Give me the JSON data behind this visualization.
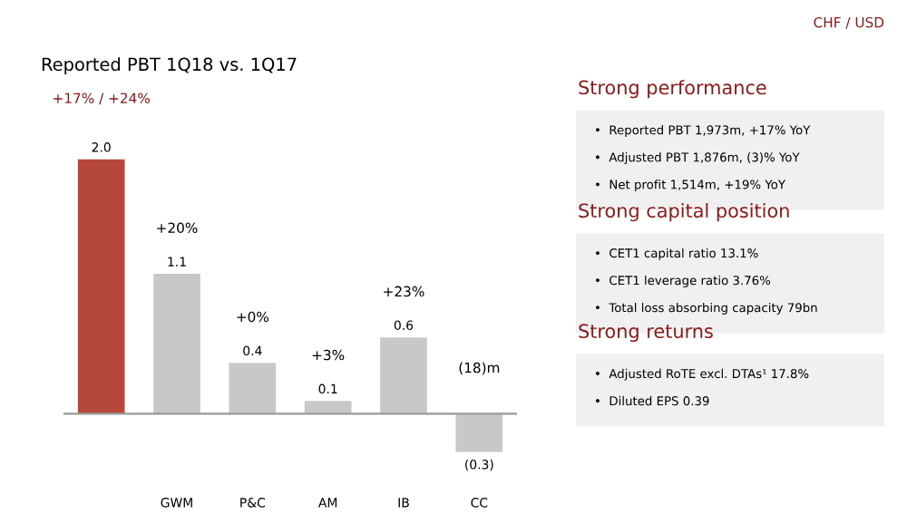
{
  "chart_data": [
    {
      "type": "bar",
      "title": "Reported PBT 1Q18 vs. 1Q17",
      "categories": [
        null,
        "GWM",
        "P&C",
        "AM",
        "IB",
        "CC"
      ],
      "values": [
        2.0,
        1.1,
        0.4,
        0.1,
        0.6,
        -0.3
      ],
      "colors": [
        "#b5483a",
        "#c8c8c8",
        "#c8c8c8",
        "#c8c8c8",
        "#c8c8c8",
        "#c8c8c8"
      ],
      "value_labels": [
        "2.0",
        "1.1",
        "0.4",
        "0.1",
        "0.6",
        "(0.3)"
      ],
      "annotations": [
        "+17% / +24%",
        "+20%",
        "+0%",
        "+3%",
        "+23%",
        "(18)m",
        "CHF / USD"
      ]
    },
    {
      "type": "other",
      "title": "Strong performance",
      "annotations": [
        "•  Reported PBT 1,973m, +17% YoY",
        "•  Adjusted PBT 1,876m, (3)% YoY",
        "•  Net profit 1,514m, +19% YoY"
      ]
    },
    {
      "type": "other",
      "title": "Strong capital position",
      "annotations": [
        "•  CET1 capital ratio 13.1%",
        "•  CET1 leverage ratio 3.76%",
        "•  Total loss absorbing capacity 79bn"
      ]
    },
    {
      "type": "other",
      "title": "Strong returns",
      "annotations": [
        "•  Adjusted RoTE excl. DTAs¹ 17.8%",
        "•  Diluted EPS 0.39"
      ]
    }
  ]
}
